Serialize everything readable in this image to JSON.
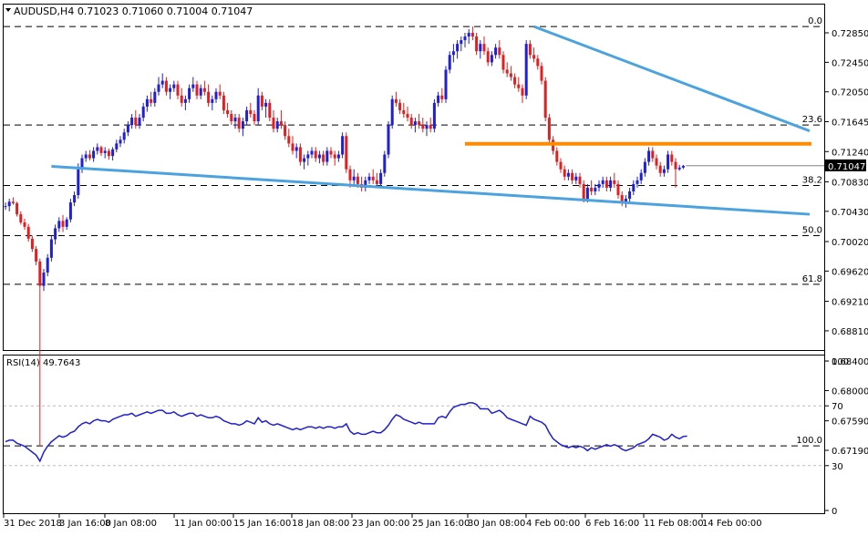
{
  "window": {
    "symbol_info": "AUDUSD,H4  0.71023 0.71060 0.71004 0.71047"
  },
  "main_panel": {
    "price_axis_labels": [
      "0.72850",
      "0.72450",
      "0.72050",
      "0.71645",
      "0.71240",
      "0.70830",
      "0.70430",
      "0.70020",
      "0.69620",
      "0.69210",
      "0.68810",
      "0.68400",
      "0.68000",
      "0.67590",
      "0.67190"
    ],
    "current_price_tag": "0.71047",
    "fib_levels": [
      {
        "label": "0.0",
        "price": 0.72935
      },
      {
        "label": "23.6",
        "price": 0.716
      },
      {
        "label": "38.2",
        "price": 0.7078
      },
      {
        "label": "50.0",
        "price": 0.701
      },
      {
        "label": "61.8",
        "price": 0.6944
      },
      {
        "label": "100.0",
        "price": 0.6725
      }
    ],
    "colors": {
      "bull": "#1f1fd6",
      "bear": "#e02020",
      "trendline": "#4aa3df",
      "resistance": "#ff8c00",
      "current": "#000000"
    }
  },
  "rsi_panel": {
    "label": "RSI(14) 49.7643",
    "levels": [
      "70",
      "30"
    ],
    "scale_labels": [
      "100",
      "70",
      "30",
      "0"
    ],
    "color": "#1f1fd6"
  },
  "time_axis": {
    "labels": [
      "31 Dec 2018",
      "3 Jan 16:00",
      "8 Jan 08:00",
      "11 Jan 00:00",
      "15 Jan 16:00",
      "18 Jan 08:00",
      "23 Jan 00:00",
      "25 Jan 16:00",
      "30 Jan 08:00",
      "4 Feb 00:00",
      "6 Feb 16:00",
      "11 Feb 08:00",
      "14 Feb 00:00"
    ]
  },
  "chart_data": {
    "type": "candlestick",
    "symbol": "AUDUSD",
    "timeframe": "H4",
    "ylim": [
      0.6715,
      0.7298
    ],
    "ohlc_last": {
      "open": 0.71023,
      "high": 0.7106,
      "low": 0.71004,
      "close": 0.71047
    },
    "trendlines": [
      {
        "type": "support",
        "from": {
          "bar": 12,
          "price": 0.7104
        },
        "to": {
          "bar": 210,
          "price": 0.7039
        },
        "color": "#4aa3df"
      },
      {
        "type": "resistance",
        "from": {
          "bar": 138,
          "price": 0.72935
        },
        "to": {
          "bar": 210,
          "price": 0.7152
        },
        "color": "#4aa3df"
      },
      {
        "type": "horizontal",
        "from_bar": 120,
        "to_bar": 210,
        "price": 0.71345,
        "color": "#ff8c00"
      }
    ],
    "rsi": {
      "period": 14,
      "last": 49.7643,
      "levels": [
        70,
        30
      ]
    },
    "candles": [
      [
        0.7049,
        0.7055,
        0.7045,
        0.705
      ],
      [
        0.705,
        0.706,
        0.7043,
        0.7056
      ],
      [
        0.7056,
        0.7062,
        0.7052,
        0.7054
      ],
      [
        0.7054,
        0.7056,
        0.7036,
        0.7039
      ],
      [
        0.7039,
        0.7043,
        0.7025,
        0.7028
      ],
      [
        0.7028,
        0.7033,
        0.7018,
        0.7022
      ],
      [
        0.7022,
        0.7026,
        0.7002,
        0.7006
      ],
      [
        0.7006,
        0.701,
        0.6988,
        0.6992
      ],
      [
        0.6992,
        0.6996,
        0.697,
        0.6975
      ],
      [
        0.6975,
        0.6979,
        0.6725,
        0.6942
      ],
      [
        0.6942,
        0.6965,
        0.6935,
        0.696
      ],
      [
        0.696,
        0.6985,
        0.6955,
        0.698
      ],
      [
        0.698,
        0.701,
        0.6975,
        0.7005
      ],
      [
        0.7005,
        0.7025,
        0.6998,
        0.702
      ],
      [
        0.702,
        0.7035,
        0.7015,
        0.703
      ],
      [
        0.703,
        0.7038,
        0.7015,
        0.7022
      ],
      [
        0.7022,
        0.7035,
        0.7018,
        0.7032
      ],
      [
        0.7032,
        0.706,
        0.7028,
        0.7055
      ],
      [
        0.7055,
        0.707,
        0.705,
        0.7065
      ],
      [
        0.7065,
        0.7108,
        0.706,
        0.71
      ],
      [
        0.71,
        0.712,
        0.7095,
        0.7115
      ],
      [
        0.7115,
        0.7125,
        0.711,
        0.712
      ],
      [
        0.712,
        0.7126,
        0.7112,
        0.7115
      ],
      [
        0.7115,
        0.713,
        0.711,
        0.7125
      ],
      [
        0.7125,
        0.7135,
        0.712,
        0.713
      ],
      [
        0.713,
        0.7132,
        0.7118,
        0.7122
      ],
      [
        0.7122,
        0.713,
        0.7115,
        0.7125
      ],
      [
        0.7125,
        0.7128,
        0.7113,
        0.7118
      ],
      [
        0.7118,
        0.713,
        0.7112,
        0.7127
      ],
      [
        0.7127,
        0.714,
        0.7123,
        0.7135
      ],
      [
        0.7135,
        0.7145,
        0.713,
        0.714
      ],
      [
        0.714,
        0.7155,
        0.7135,
        0.715
      ],
      [
        0.715,
        0.7165,
        0.7145,
        0.716
      ],
      [
        0.716,
        0.7175,
        0.7155,
        0.717
      ],
      [
        0.717,
        0.718,
        0.7155,
        0.716
      ],
      [
        0.716,
        0.7175,
        0.7155,
        0.717
      ],
      [
        0.717,
        0.719,
        0.7165,
        0.7185
      ],
      [
        0.7185,
        0.72,
        0.7178,
        0.7195
      ],
      [
        0.7195,
        0.7205,
        0.7185,
        0.719
      ],
      [
        0.719,
        0.721,
        0.7185,
        0.7205
      ],
      [
        0.7205,
        0.7225,
        0.72,
        0.7215
      ],
      [
        0.7215,
        0.723,
        0.721,
        0.722
      ],
      [
        0.722,
        0.7225,
        0.72,
        0.7205
      ],
      [
        0.7205,
        0.7215,
        0.7195,
        0.721
      ],
      [
        0.721,
        0.722,
        0.7205,
        0.7215
      ],
      [
        0.7215,
        0.722,
        0.7195,
        0.72
      ],
      [
        0.72,
        0.721,
        0.7185,
        0.719
      ],
      [
        0.719,
        0.72,
        0.718,
        0.7195
      ],
      [
        0.7195,
        0.7215,
        0.719,
        0.721
      ],
      [
        0.721,
        0.7225,
        0.7205,
        0.7215
      ],
      [
        0.7215,
        0.722,
        0.7195,
        0.72
      ],
      [
        0.72,
        0.7215,
        0.7195,
        0.721
      ],
      [
        0.721,
        0.722,
        0.72,
        0.7205
      ],
      [
        0.7205,
        0.7215,
        0.7185,
        0.719
      ],
      [
        0.719,
        0.72,
        0.718,
        0.7195
      ],
      [
        0.7195,
        0.721,
        0.719,
        0.7205
      ],
      [
        0.7205,
        0.7215,
        0.7195,
        0.72
      ],
      [
        0.72,
        0.7205,
        0.7175,
        0.718
      ],
      [
        0.718,
        0.719,
        0.717,
        0.7175
      ],
      [
        0.7175,
        0.718,
        0.716,
        0.7165
      ],
      [
        0.7165,
        0.7175,
        0.7155,
        0.717
      ],
      [
        0.717,
        0.7175,
        0.715,
        0.7155
      ],
      [
        0.7155,
        0.717,
        0.7145,
        0.7165
      ],
      [
        0.7165,
        0.7185,
        0.716,
        0.718
      ],
      [
        0.718,
        0.719,
        0.717,
        0.7175
      ],
      [
        0.7175,
        0.718,
        0.716,
        0.7165
      ],
      [
        0.7165,
        0.721,
        0.716,
        0.72
      ],
      [
        0.72,
        0.7205,
        0.718,
        0.7185
      ],
      [
        0.7185,
        0.7195,
        0.717,
        0.719
      ],
      [
        0.719,
        0.7195,
        0.7165,
        0.717
      ],
      [
        0.717,
        0.718,
        0.715,
        0.7155
      ],
      [
        0.7155,
        0.717,
        0.715,
        0.7165
      ],
      [
        0.7165,
        0.718,
        0.7155,
        0.716
      ],
      [
        0.716,
        0.7165,
        0.714,
        0.7145
      ],
      [
        0.7145,
        0.7155,
        0.713,
        0.7135
      ],
      [
        0.7135,
        0.7145,
        0.712,
        0.7125
      ],
      [
        0.7125,
        0.7135,
        0.7115,
        0.713
      ],
      [
        0.713,
        0.7135,
        0.7105,
        0.711
      ],
      [
        0.711,
        0.712,
        0.71,
        0.7115
      ],
      [
        0.7115,
        0.7125,
        0.7105,
        0.712
      ],
      [
        0.712,
        0.713,
        0.7115,
        0.7125
      ],
      [
        0.7125,
        0.713,
        0.711,
        0.7115
      ],
      [
        0.7115,
        0.7125,
        0.7108,
        0.712
      ],
      [
        0.712,
        0.7125,
        0.7105,
        0.711
      ],
      [
        0.711,
        0.713,
        0.7105,
        0.7125
      ],
      [
        0.7125,
        0.713,
        0.7115,
        0.712
      ],
      [
        0.712,
        0.7125,
        0.7105,
        0.7115
      ],
      [
        0.7115,
        0.7125,
        0.711,
        0.712
      ],
      [
        0.712,
        0.715,
        0.7115,
        0.7145
      ],
      [
        0.7145,
        0.715,
        0.7095,
        0.71
      ],
      [
        0.71,
        0.7105,
        0.7075,
        0.7085
      ],
      [
        0.7085,
        0.71,
        0.708,
        0.709
      ],
      [
        0.709,
        0.7095,
        0.7075,
        0.708
      ],
      [
        0.708,
        0.709,
        0.707,
        0.7075
      ],
      [
        0.7075,
        0.709,
        0.707,
        0.7085
      ],
      [
        0.7085,
        0.7095,
        0.708,
        0.709
      ],
      [
        0.709,
        0.71,
        0.708,
        0.7085
      ],
      [
        0.7085,
        0.7095,
        0.7075,
        0.708
      ],
      [
        0.708,
        0.71,
        0.7075,
        0.7095
      ],
      [
        0.7095,
        0.7125,
        0.709,
        0.712
      ],
      [
        0.712,
        0.7165,
        0.7115,
        0.716
      ],
      [
        0.716,
        0.72,
        0.7155,
        0.7195
      ],
      [
        0.7195,
        0.7205,
        0.7185,
        0.719
      ],
      [
        0.719,
        0.7195,
        0.7175,
        0.718
      ],
      [
        0.718,
        0.719,
        0.717,
        0.7175
      ],
      [
        0.7175,
        0.7185,
        0.7165,
        0.717
      ],
      [
        0.717,
        0.7175,
        0.7155,
        0.716
      ],
      [
        0.716,
        0.717,
        0.715,
        0.7165
      ],
      [
        0.7165,
        0.7175,
        0.7155,
        0.716
      ],
      [
        0.716,
        0.717,
        0.715,
        0.7155
      ],
      [
        0.7155,
        0.7165,
        0.7145,
        0.716
      ],
      [
        0.716,
        0.717,
        0.715,
        0.7155
      ],
      [
        0.7155,
        0.7195,
        0.715,
        0.719
      ],
      [
        0.719,
        0.7205,
        0.7185,
        0.72
      ],
      [
        0.72,
        0.721,
        0.719,
        0.7195
      ],
      [
        0.7195,
        0.724,
        0.719,
        0.7235
      ],
      [
        0.7235,
        0.726,
        0.723,
        0.7255
      ],
      [
        0.7255,
        0.727,
        0.7245,
        0.726
      ],
      [
        0.726,
        0.7275,
        0.725,
        0.727
      ],
      [
        0.727,
        0.728,
        0.726,
        0.7275
      ],
      [
        0.7275,
        0.7285,
        0.7265,
        0.728
      ],
      [
        0.728,
        0.729,
        0.727,
        0.7285
      ],
      [
        0.7285,
        0.72935,
        0.7275,
        0.728
      ],
      [
        0.728,
        0.7285,
        0.7255,
        0.726
      ],
      [
        0.726,
        0.7275,
        0.725,
        0.727
      ],
      [
        0.727,
        0.728,
        0.7255,
        0.726
      ],
      [
        0.726,
        0.7265,
        0.724,
        0.7245
      ],
      [
        0.7245,
        0.726,
        0.724,
        0.7255
      ],
      [
        0.7255,
        0.727,
        0.725,
        0.7265
      ],
      [
        0.7265,
        0.7275,
        0.725,
        0.7255
      ],
      [
        0.7255,
        0.726,
        0.723,
        0.7235
      ],
      [
        0.7235,
        0.7245,
        0.7225,
        0.723
      ],
      [
        0.723,
        0.724,
        0.722,
        0.7225
      ],
      [
        0.7225,
        0.723,
        0.721,
        0.7215
      ],
      [
        0.7215,
        0.7225,
        0.7205,
        0.721
      ],
      [
        0.721,
        0.7215,
        0.719,
        0.72
      ],
      [
        0.72,
        0.7275,
        0.7195,
        0.727
      ],
      [
        0.727,
        0.7275,
        0.725,
        0.7255
      ],
      [
        0.7255,
        0.7265,
        0.7245,
        0.725
      ],
      [
        0.725,
        0.7255,
        0.7235,
        0.724
      ],
      [
        0.724,
        0.7245,
        0.7215,
        0.722
      ],
      [
        0.722,
        0.7225,
        0.7165,
        0.717
      ],
      [
        0.717,
        0.7175,
        0.7135,
        0.714
      ],
      [
        0.714,
        0.7145,
        0.712,
        0.7125
      ],
      [
        0.7125,
        0.713,
        0.7105,
        0.711
      ],
      [
        0.711,
        0.7115,
        0.7095,
        0.71
      ],
      [
        0.71,
        0.7105,
        0.7085,
        0.709
      ],
      [
        0.709,
        0.71,
        0.7085,
        0.7095
      ],
      [
        0.7095,
        0.71,
        0.708,
        0.7085
      ],
      [
        0.7085,
        0.7095,
        0.708,
        0.709
      ],
      [
        0.709,
        0.7095,
        0.7075,
        0.708
      ],
      [
        0.708,
        0.7085,
        0.7055,
        0.706
      ],
      [
        0.706,
        0.708,
        0.7055,
        0.7075
      ],
      [
        0.7075,
        0.7085,
        0.7065,
        0.707
      ],
      [
        0.707,
        0.708,
        0.7065,
        0.7075
      ],
      [
        0.7075,
        0.7085,
        0.707,
        0.708
      ],
      [
        0.708,
        0.709,
        0.7075,
        0.7085
      ],
      [
        0.7085,
        0.709,
        0.707,
        0.7075
      ],
      [
        0.7075,
        0.709,
        0.707,
        0.7085
      ],
      [
        0.7085,
        0.7095,
        0.7075,
        0.708
      ],
      [
        0.708,
        0.7085,
        0.706,
        0.7065
      ],
      [
        0.7065,
        0.707,
        0.705,
        0.7055
      ],
      [
        0.7055,
        0.7065,
        0.7048,
        0.706
      ],
      [
        0.706,
        0.7075,
        0.7055,
        0.707
      ],
      [
        0.707,
        0.7085,
        0.7065,
        0.708
      ],
      [
        0.708,
        0.709,
        0.7075,
        0.7085
      ],
      [
        0.7085,
        0.71,
        0.708,
        0.7095
      ],
      [
        0.7095,
        0.7115,
        0.709,
        0.711
      ],
      [
        0.711,
        0.713,
        0.7105,
        0.7125
      ],
      [
        0.7125,
        0.713,
        0.711,
        0.7115
      ],
      [
        0.7115,
        0.712,
        0.71,
        0.7105
      ],
      [
        0.7105,
        0.711,
        0.709,
        0.7095
      ],
      [
        0.7095,
        0.7105,
        0.709,
        0.71
      ],
      [
        0.71,
        0.7125,
        0.7095,
        0.712
      ],
      [
        0.712,
        0.7125,
        0.7105,
        0.711
      ],
      [
        0.711,
        0.7115,
        0.7075,
        0.71
      ],
      [
        0.71,
        0.7106,
        0.7098,
        0.71023
      ],
      [
        0.71023,
        0.7106,
        0.71004,
        0.71047
      ]
    ],
    "rsi_values": [
      46,
      47,
      47,
      45,
      44,
      43,
      41,
      39,
      37,
      33,
      39,
      43,
      46,
      48,
      50,
      49,
      50,
      52,
      53,
      56,
      58,
      59,
      58,
      60,
      61,
      60,
      60,
      59,
      61,
      62,
      63,
      64,
      64,
      65,
      63,
      64,
      65,
      66,
      65,
      66,
      67,
      67,
      65,
      65,
      66,
      64,
      63,
      64,
      65,
      65,
      63,
      64,
      63,
      62,
      62,
      63,
      62,
      60,
      59,
      58,
      58,
      57,
      58,
      60,
      59,
      58,
      62,
      59,
      60,
      58,
      57,
      58,
      57,
      56,
      55,
      54,
      55,
      54,
      55,
      56,
      56,
      55,
      56,
      55,
      56,
      56,
      55,
      56,
      56,
      58,
      53,
      51,
      52,
      51,
      51,
      52,
      53,
      52,
      52,
      54,
      57,
      61,
      64,
      63,
      61,
      60,
      59,
      58,
      59,
      58,
      58,
      58,
      58,
      62,
      63,
      62,
      66,
      69,
      70,
      71,
      71,
      72,
      72,
      71,
      68,
      68,
      68,
      65,
      66,
      67,
      65,
      62,
      61,
      60,
      59,
      58,
      57,
      63,
      61,
      60,
      59,
      57,
      52,
      48,
      46,
      44,
      43,
      42,
      43,
      42,
      43,
      42,
      40,
      42,
      41,
      42,
      43,
      44,
      43,
      44,
      43,
      41,
      40,
      41,
      42,
      44,
      45,
      46,
      48,
      51,
      50,
      49,
      47,
      48,
      51,
      49,
      48,
      49.5,
      49.7643
    ]
  }
}
